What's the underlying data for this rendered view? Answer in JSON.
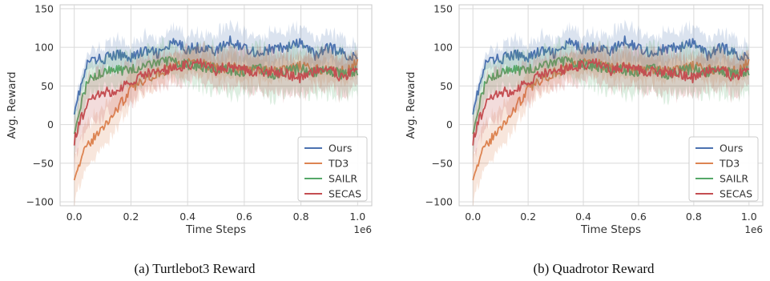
{
  "colors": {
    "Ours": "#4c72b0",
    "TD3": "#dd8452",
    "SAILR": "#55a868",
    "SECAS": "#c44e52",
    "grid": "#d9d9d9",
    "axes_edge": "#c8c8c8",
    "text": "#333333"
  },
  "captions": [
    "(a) Turtlebot3 Reward",
    "(b) Quadrotor Reward"
  ],
  "chart_data": [
    {
      "type": "line",
      "title": "",
      "xlabel": "Time Steps",
      "ylabel": "Avg. Reward",
      "x_offset_label": "1e6",
      "xlim": [
        -0.05,
        1.05
      ],
      "ylim": [
        -105,
        155
      ],
      "xticks": [
        0.0,
        0.2,
        0.4,
        0.6,
        0.8,
        1.0
      ],
      "xtick_labels": [
        "0.0",
        "0.2",
        "0.4",
        "0.6",
        "0.8",
        "1.0"
      ],
      "yticks": [
        -100,
        -50,
        0,
        50,
        100,
        150
      ],
      "ytick_labels": [
        "−100",
        "−50",
        "0",
        "50",
        "100",
        "150"
      ],
      "grid": true,
      "legend": "bottom-right",
      "x": [
        0.0,
        0.05,
        0.1,
        0.15,
        0.2,
        0.25,
        0.3,
        0.35,
        0.4,
        0.45,
        0.5,
        0.55,
        0.6,
        0.65,
        0.7,
        0.75,
        0.8,
        0.85,
        0.9,
        0.95,
        1.0
      ],
      "series": [
        {
          "name": "Ours",
          "values": [
            20,
            82,
            85,
            90,
            88,
            95,
            92,
            105,
            98,
            100,
            95,
            108,
            100,
            92,
            98,
            100,
            105,
            90,
            100,
            92,
            85
          ],
          "band": [
            10,
            12,
            15,
            20,
            15,
            20,
            18,
            20,
            20,
            18,
            20,
            25,
            20,
            22,
            20,
            20,
            22,
            20,
            22,
            20,
            15
          ]
        },
        {
          "name": "TD3",
          "values": [
            -65,
            -25,
            -5,
            20,
            45,
            60,
            68,
            75,
            80,
            78,
            72,
            75,
            70,
            72,
            68,
            72,
            75,
            70,
            72,
            70,
            80
          ],
          "band": [
            30,
            30,
            25,
            25,
            20,
            18,
            15,
            15,
            15,
            15,
            15,
            15,
            15,
            15,
            15,
            15,
            15,
            15,
            15,
            15,
            15
          ]
        },
        {
          "name": "SAILR",
          "values": [
            -5,
            60,
            68,
            70,
            72,
            75,
            80,
            82,
            78,
            75,
            72,
            70,
            68,
            72,
            65,
            70,
            72,
            68,
            70,
            65,
            70
          ],
          "band": [
            25,
            20,
            20,
            22,
            20,
            20,
            22,
            20,
            22,
            25,
            28,
            30,
            30,
            28,
            30,
            28,
            28,
            30,
            28,
            30,
            25
          ]
        },
        {
          "name": "SECAS",
          "values": [
            -20,
            35,
            40,
            45,
            55,
            65,
            70,
            72,
            78,
            80,
            70,
            75,
            72,
            68,
            70,
            65,
            60,
            70,
            72,
            60,
            75
          ],
          "band": [
            25,
            30,
            30,
            30,
            25,
            22,
            22,
            20,
            20,
            22,
            25,
            25,
            25,
            25,
            28,
            28,
            25,
            25,
            25,
            25,
            22
          ]
        }
      ]
    },
    {
      "type": "line",
      "title": "",
      "xlabel": "Time Steps",
      "ylabel": "Avg. Reward",
      "x_offset_label": "1e6",
      "xlim": [
        -0.05,
        1.05
      ],
      "ylim": [
        -105,
        155
      ],
      "xticks": [
        0.0,
        0.2,
        0.4,
        0.6,
        0.8,
        1.0
      ],
      "xtick_labels": [
        "0.0",
        "0.2",
        "0.4",
        "0.6",
        "0.8",
        "1.0"
      ],
      "yticks": [
        -100,
        -50,
        0,
        50,
        100,
        150
      ],
      "ytick_labels": [
        "−100",
        "−50",
        "0",
        "50",
        "100",
        "150"
      ],
      "grid": true,
      "legend": "bottom-right",
      "x": [
        0.0,
        0.05,
        0.1,
        0.15,
        0.2,
        0.25,
        0.3,
        0.35,
        0.4,
        0.45,
        0.5,
        0.55,
        0.6,
        0.65,
        0.7,
        0.75,
        0.8,
        0.85,
        0.9,
        0.95,
        1.0
      ],
      "series": [
        {
          "name": "Ours",
          "values": [
            20,
            82,
            85,
            90,
            88,
            95,
            92,
            105,
            98,
            100,
            95,
            108,
            100,
            92,
            98,
            100,
            105,
            90,
            100,
            92,
            85
          ],
          "band": [
            10,
            12,
            15,
            20,
            15,
            20,
            18,
            20,
            20,
            18,
            20,
            25,
            20,
            22,
            20,
            20,
            22,
            20,
            22,
            20,
            15
          ]
        },
        {
          "name": "TD3",
          "values": [
            -65,
            -25,
            -5,
            20,
            45,
            60,
            68,
            75,
            80,
            78,
            72,
            75,
            70,
            72,
            68,
            72,
            75,
            70,
            72,
            70,
            80
          ],
          "band": [
            30,
            30,
            25,
            25,
            20,
            18,
            15,
            15,
            15,
            15,
            15,
            15,
            15,
            15,
            15,
            15,
            15,
            15,
            15,
            15,
            15
          ]
        },
        {
          "name": "SAILR",
          "values": [
            -5,
            60,
            68,
            70,
            72,
            75,
            80,
            82,
            78,
            75,
            72,
            70,
            68,
            72,
            65,
            70,
            72,
            68,
            70,
            65,
            70
          ],
          "band": [
            25,
            20,
            20,
            22,
            20,
            20,
            22,
            20,
            22,
            25,
            28,
            30,
            30,
            28,
            30,
            28,
            28,
            30,
            28,
            30,
            25
          ]
        },
        {
          "name": "SECAS",
          "values": [
            -20,
            35,
            40,
            45,
            55,
            65,
            70,
            72,
            78,
            80,
            70,
            75,
            72,
            68,
            70,
            65,
            60,
            70,
            72,
            60,
            75
          ],
          "band": [
            25,
            30,
            30,
            30,
            25,
            22,
            22,
            20,
            20,
            22,
            25,
            25,
            25,
            25,
            28,
            28,
            25,
            25,
            25,
            25,
            22
          ]
        }
      ]
    }
  ]
}
